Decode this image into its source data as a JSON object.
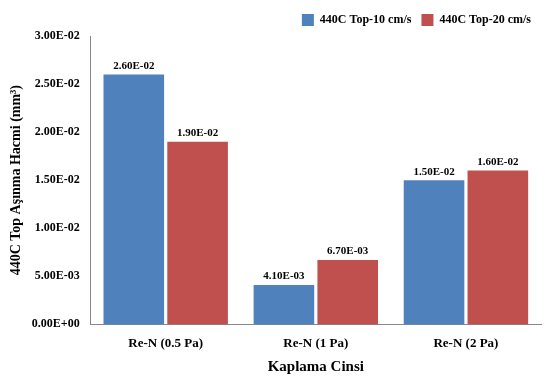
{
  "chart_data": {
    "type": "bar",
    "x_label": "Kaplama Cinsi",
    "y_label": "440C Top Aşınma Hacmi (mm³)",
    "categories": [
      "Re-N (0.5 Pa)",
      "Re-N (1 Pa)",
      "Re-N (2 Pa)"
    ],
    "series": [
      {
        "name": "440C Top-10 cm/s",
        "color": "#4f81bd",
        "values": [
          0.026,
          0.0041,
          0.015
        ],
        "value_labels": [
          "2.60E-02",
          "4.10E-03",
          "1.50E-02"
        ]
      },
      {
        "name": "440C Top-20 cm/s",
        "color": "#c0504d",
        "values": [
          0.019,
          0.0067,
          0.016
        ],
        "value_labels": [
          "1.90E-02",
          "6.70E-03",
          "1.60E-02"
        ]
      }
    ],
    "ylim": [
      0,
      0.03
    ],
    "yticks": [
      {
        "value": 0,
        "label": "0.00E+00"
      },
      {
        "value": 0.005,
        "label": "5.00E-03"
      },
      {
        "value": 0.01,
        "label": "1.00E-02"
      },
      {
        "value": 0.015,
        "label": "1.50E-02"
      },
      {
        "value": 0.02,
        "label": "2.00E-02"
      },
      {
        "value": 0.025,
        "label": "2.50E-02"
      },
      {
        "value": 0.03,
        "label": "3.00E-02"
      }
    ],
    "grid": false,
    "legend": "upper right",
    "data_labels": true
  }
}
